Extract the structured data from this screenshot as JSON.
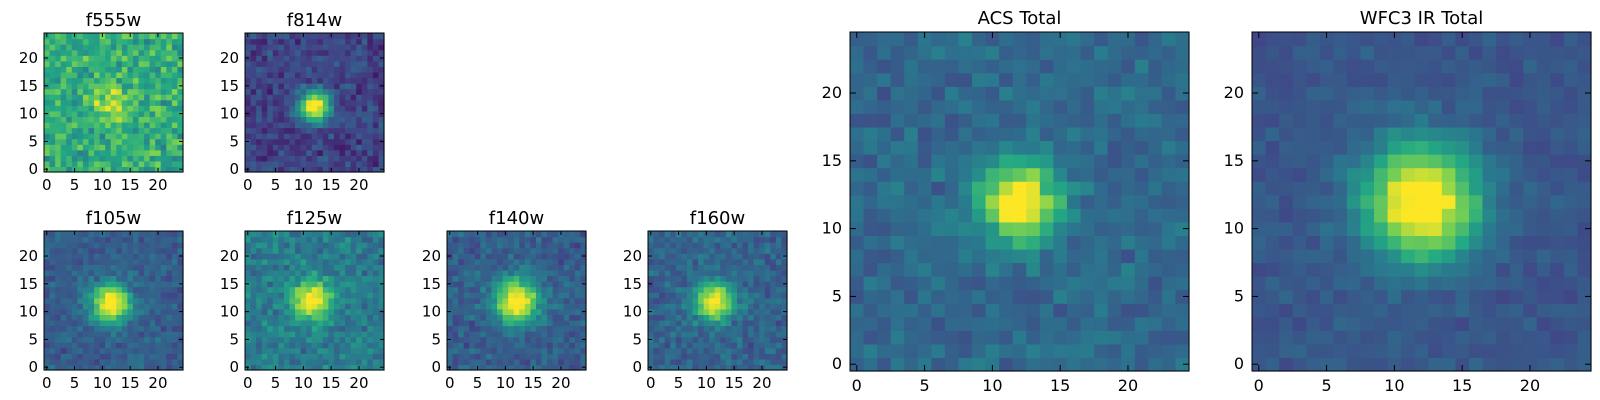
{
  "figure": {
    "colormap": "viridis",
    "colormap_stops": [
      "#440154",
      "#414487",
      "#2a788e",
      "#22a884",
      "#7ad151",
      "#fde725"
    ]
  },
  "chart_data": [
    {
      "type": "heatmap",
      "title": "f555w",
      "grid_size": 25,
      "source_center": [
        11.5,
        12
      ],
      "source_sigma": 2.2,
      "peak_level": 0.88,
      "background_level": 0.62,
      "noise_level": 0.22,
      "xticks": [
        "0",
        "5",
        "10",
        "15",
        "20"
      ],
      "yticks": [
        "0",
        "5",
        "10",
        "15",
        "20"
      ],
      "xlim": [
        0,
        25
      ],
      "ylim": [
        0,
        25
      ]
    },
    {
      "type": "heatmap",
      "title": "f814w",
      "grid_size": 25,
      "source_center": [
        12,
        11.5
      ],
      "source_sigma": 1.9,
      "peak_level": 0.97,
      "background_level": 0.2,
      "noise_level": 0.14,
      "xticks": [
        "0",
        "5",
        "10",
        "15",
        "20"
      ],
      "yticks": [
        "0",
        "5",
        "10",
        "15",
        "20"
      ],
      "xlim": [
        0,
        25
      ],
      "ylim": [
        0,
        25
      ]
    },
    {
      "type": "heatmap",
      "title": "f105w",
      "grid_size": 25,
      "source_center": [
        11.5,
        11.5
      ],
      "source_sigma": 2.4,
      "peak_level": 0.98,
      "background_level": 0.3,
      "noise_level": 0.12,
      "xticks": [
        "0",
        "5",
        "10",
        "15",
        "20"
      ],
      "yticks": [
        "0",
        "5",
        "10",
        "15",
        "20"
      ],
      "xlim": [
        0,
        25
      ],
      "ylim": [
        0,
        25
      ]
    },
    {
      "type": "heatmap",
      "title": "f125w",
      "grid_size": 25,
      "source_center": [
        11.5,
        12
      ],
      "source_sigma": 2.5,
      "peak_level": 0.95,
      "background_level": 0.42,
      "noise_level": 0.16,
      "xticks": [
        "0",
        "5",
        "10",
        "15",
        "20"
      ],
      "yticks": [
        "0",
        "5",
        "10",
        "15",
        "20"
      ],
      "xlim": [
        0,
        25
      ],
      "ylim": [
        0,
        25
      ]
    },
    {
      "type": "heatmap",
      "title": "f140w",
      "grid_size": 25,
      "source_center": [
        12,
        12
      ],
      "source_sigma": 2.8,
      "peak_level": 0.98,
      "background_level": 0.3,
      "noise_level": 0.13,
      "xticks": [
        "0",
        "5",
        "10",
        "15",
        "20"
      ],
      "yticks": [
        "0",
        "5",
        "10",
        "15",
        "20"
      ],
      "xlim": [
        0,
        25
      ],
      "ylim": [
        0,
        25
      ]
    },
    {
      "type": "heatmap",
      "title": "f160w",
      "grid_size": 25,
      "source_center": [
        11.5,
        12
      ],
      "source_sigma": 2.4,
      "peak_level": 0.97,
      "background_level": 0.32,
      "noise_level": 0.13,
      "xticks": [
        "0",
        "5",
        "10",
        "15",
        "20"
      ],
      "yticks": [
        "0",
        "5",
        "10",
        "15",
        "20"
      ],
      "xlim": [
        0,
        25
      ],
      "ylim": [
        0,
        25
      ]
    },
    {
      "type": "heatmap",
      "title": "ACS Total",
      "grid_size": 25,
      "source_center": [
        12,
        12
      ],
      "source_sigma": 2.0,
      "peak_level": 0.99,
      "background_level": 0.34,
      "noise_level": 0.11,
      "xticks": [
        "0",
        "5",
        "10",
        "15",
        "20"
      ],
      "yticks": [
        "0",
        "5",
        "10",
        "15",
        "20"
      ],
      "xlim": [
        0,
        25
      ],
      "ylim": [
        0,
        25
      ]
    },
    {
      "type": "heatmap",
      "title": "WFC3 IR Total",
      "grid_size": 25,
      "source_center": [
        12,
        12
      ],
      "source_sigma": 3.0,
      "peak_level": 0.99,
      "background_level": 0.27,
      "noise_level": 0.07,
      "xticks": [
        "0",
        "5",
        "10",
        "15",
        "20"
      ],
      "yticks": [
        "0",
        "5",
        "10",
        "15",
        "20"
      ],
      "xlim": [
        0,
        25
      ],
      "ylim": [
        0,
        25
      ]
    }
  ]
}
